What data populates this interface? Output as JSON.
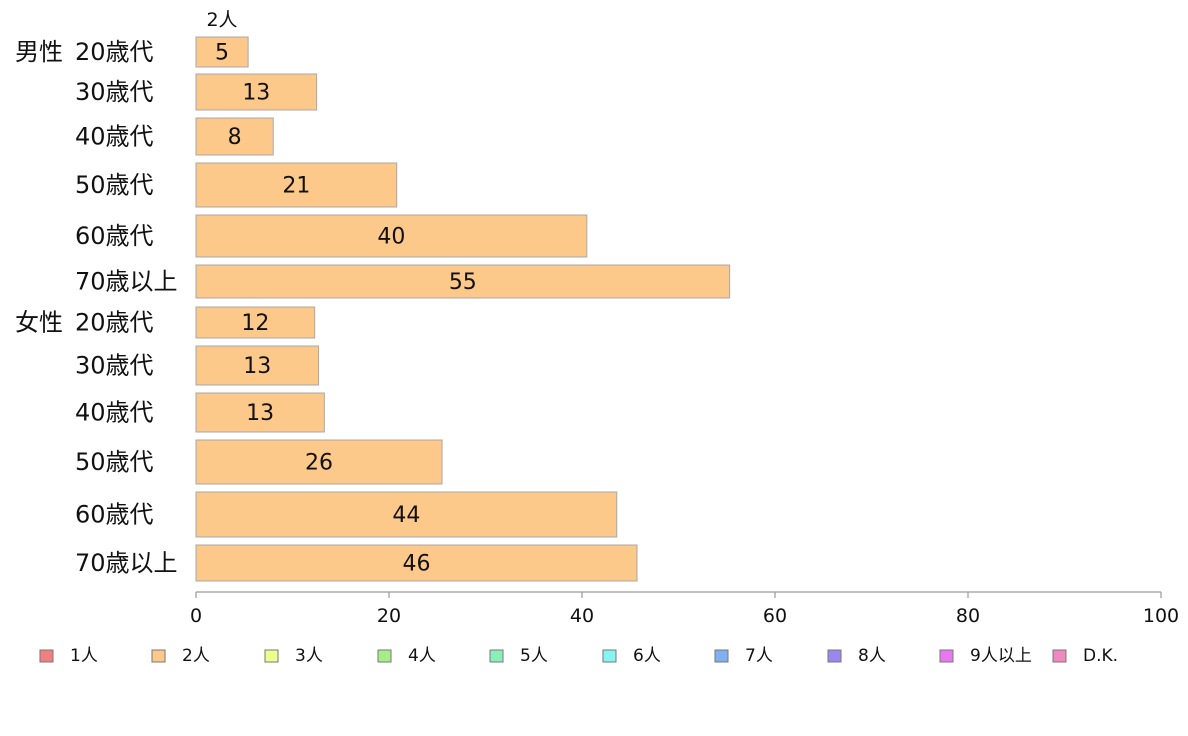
{
  "chart_data": {
    "type": "bar",
    "orientation": "horizontal",
    "stacked": true,
    "series_header": "2人",
    "groups": [
      {
        "label": "男性",
        "categories": [
          "20歳代",
          "30歳代",
          "40歳代",
          "50歳代",
          "60歳代",
          "70歳以上"
        ]
      },
      {
        "label": "女性",
        "categories": [
          "20歳代",
          "30歳代",
          "40歳代",
          "50歳代",
          "60歳代",
          "70歳以上"
        ]
      }
    ],
    "series": [
      {
        "name": "2人",
        "color": "#fdc98a",
        "values": [
          5.4,
          12.5,
          8.0,
          20.8,
          40.5,
          55.3,
          12.3,
          12.7,
          13.3,
          25.5,
          43.6,
          45.7
        ],
        "labels": [
          "5",
          "13",
          "8",
          "21",
          "40",
          "55",
          "12",
          "13",
          "13",
          "26",
          "44",
          "46"
        ]
      }
    ],
    "xlim": [
      0,
      100
    ],
    "x_ticks": [
      "0",
      "20",
      "40",
      "60",
      "80",
      "100"
    ],
    "legend": {
      "position": "bottom",
      "entries": [
        {
          "label": "1人",
          "color": "#f08080"
        },
        {
          "label": "2人",
          "color": "#fdc98a"
        },
        {
          "label": "3人",
          "color": "#eeff90"
        },
        {
          "label": "4人",
          "color": "#a8ee88"
        },
        {
          "label": "5人",
          "color": "#88f0b8"
        },
        {
          "label": "6人",
          "color": "#88f4f4"
        },
        {
          "label": "7人",
          "color": "#80b0f0"
        },
        {
          "label": "8人",
          "color": "#9a88f0"
        },
        {
          "label": "9人以上",
          "color": "#e878f0"
        },
        {
          "label": "D.K.",
          "color": "#f088c0"
        }
      ]
    }
  }
}
